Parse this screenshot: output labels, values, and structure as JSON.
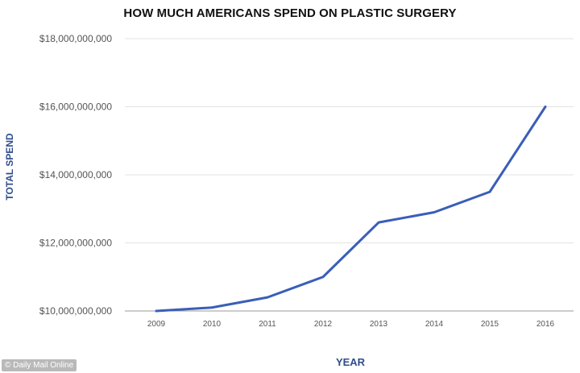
{
  "chart_data": {
    "type": "line",
    "title": "HOW MUCH AMERICANS SPEND ON PLASTIC SURGERY",
    "xlabel": "YEAR",
    "ylabel": "TOTAL SPEND",
    "categories": [
      "2009",
      "2010",
      "2011",
      "2012",
      "2013",
      "2014",
      "2015",
      "2016"
    ],
    "series": [
      {
        "values": [
          10000000000,
          10100000000,
          10400000000,
          11000000000,
          12600000000,
          12900000000,
          13500000000,
          16000000000
        ]
      }
    ],
    "ylim": [
      10000000000,
      18000000000
    ],
    "y_ticks": [
      "$10,000,000,000",
      "$12,000,000,000",
      "$14,000,000,000",
      "$16,000,000,000",
      "$18,000,000,000"
    ],
    "y_tick_values": [
      10000000000,
      12000000000,
      14000000000,
      16000000000,
      18000000000
    ],
    "grid": true,
    "line_color": "#3a5eb8"
  },
  "watermark": "© Daily Mail Online"
}
